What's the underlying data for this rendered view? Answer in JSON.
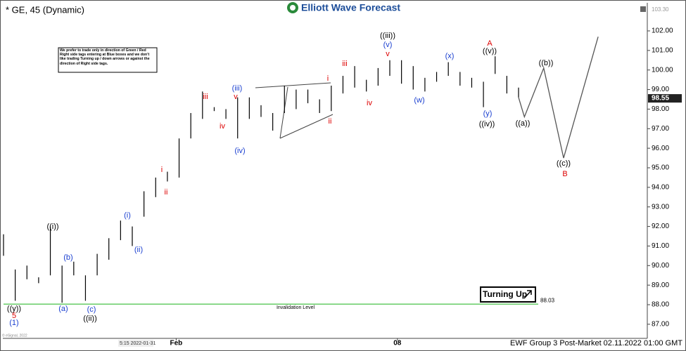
{
  "header": {
    "symbol": "* GE, 45 (Dynamic)",
    "logo": "Elliott Wave Forecast",
    "corner_value": "103.30"
  },
  "note": "We prefer to trade only in direction of Green / Red Right side tags entering at Blue boxes and we don't like trading Turning up / down arrows or against the direction of Right side tags.",
  "button": "Turning Up",
  "footer": {
    "status": "EWF Group 3 Post-Market 02.11.2022 01:00 GMT",
    "copyright": "© eSignal, 2022",
    "cursor_time": "5:15 2022-01-31"
  },
  "chart_data": {
    "type": "ohlc",
    "x": [
      0,
      2,
      4,
      6,
      8,
      10,
      12,
      14,
      16,
      18,
      20,
      22,
      24,
      26,
      28,
      30,
      32,
      34,
      36,
      38,
      40,
      42,
      44,
      46,
      48,
      50,
      52,
      54,
      56,
      58,
      60,
      62,
      64,
      66,
      68,
      70,
      72,
      74,
      76,
      78,
      80,
      82,
      84,
      86,
      88
    ],
    "high": [
      91.6,
      89.8,
      90.0,
      89.4,
      92.0,
      90.0,
      90.2,
      89.5,
      90.6,
      91.4,
      92.3,
      92.0,
      93.8,
      94.5,
      94.8,
      96.5,
      97.8,
      98.9,
      98.1,
      98.0,
      98.6,
      98.6,
      98.2,
      97.8,
      99.2,
      99.0,
      99.0,
      98.5,
      99.2,
      99.7,
      100.2,
      99.5,
      100.1,
      100.5,
      100.5,
      100.2,
      99.6,
      99.9,
      100.4,
      99.9,
      99.6,
      99.4,
      100.7,
      99.7,
      99.1
    ],
    "low": [
      90.5,
      88.2,
      89.3,
      89.1,
      89.5,
      88.1,
      89.5,
      88.2,
      89.5,
      90.3,
      91.3,
      91.0,
      92.5,
      93.5,
      94.3,
      94.5,
      96.5,
      97.5,
      97.9,
      97.5,
      96.5,
      97.5,
      97.6,
      96.9,
      97.8,
      98.0,
      98.3,
      97.8,
      97.9,
      98.8,
      99.1,
      98.9,
      99.2,
      99.7,
      99.3,
      99.0,
      98.9,
      99.4,
      99.7,
      99.2,
      99.1,
      98.1,
      99.8,
      98.8,
      98.6
    ],
    "bar_color": "#000000",
    "projection": {
      "x": [
        88,
        89,
        92.3,
        95.7,
        101.6
      ],
      "values": [
        98.6,
        97.6,
        100.1,
        95.5,
        101.7
      ],
      "color": "#555555"
    },
    "last_price": {
      "value": 98.55,
      "label": "98.55"
    },
    "invalidation": {
      "value": 88.03,
      "label": "Invalidation Level",
      "color": "#66cc66"
    },
    "xlim": [
      0,
      110
    ],
    "ylim": [
      86.35,
      103.22
    ],
    "xticks": [
      {
        "value": 29.5,
        "label": "Feb"
      },
      {
        "value": 67.3,
        "label": "08"
      }
    ],
    "yticks": [
      {
        "value": 87,
        "label": "87.00"
      },
      {
        "value": 88,
        "label": "88.00"
      },
      {
        "value": 89,
        "label": "89.00"
      },
      {
        "value": 90,
        "label": "90.00"
      },
      {
        "value": 91,
        "label": "91.00"
      },
      {
        "value": 92,
        "label": "92.00"
      },
      {
        "value": 93,
        "label": "93.00"
      },
      {
        "value": 94,
        "label": "94.00"
      },
      {
        "value": 95,
        "label": "95.00"
      },
      {
        "value": 96,
        "label": "96.00"
      },
      {
        "value": 97,
        "label": "97.00"
      },
      {
        "value": 98,
        "label": "98.00"
      },
      {
        "value": 99,
        "label": "99.00"
      },
      {
        "value": 100,
        "label": "100.00"
      },
      {
        "value": 101,
        "label": "101.00"
      },
      {
        "value": 102,
        "label": "102.00"
      }
    ],
    "annotations": [
      {
        "text": "((y))",
        "color": "#000000"
      },
      {
        "text": "5",
        "color": "#dd0000"
      },
      {
        "text": "(1)",
        "color": "#1a3fd0"
      },
      {
        "text": "((i))",
        "color": "#000000"
      },
      {
        "text": "(a)",
        "color": "#1a3fd0"
      },
      {
        "text": "(b)",
        "color": "#1a3fd0"
      },
      {
        "text": "(c)",
        "color": "#1a3fd0"
      },
      {
        "text": "((ii))",
        "color": "#000000"
      },
      {
        "text": "(i)",
        "color": "#1a3fd0"
      },
      {
        "text": "(ii)",
        "color": "#1a3fd0"
      },
      {
        "text": "i",
        "color": "#dd0000"
      },
      {
        "text": "ii",
        "color": "#dd0000"
      },
      {
        "text": "iii",
        "color": "#dd0000"
      },
      {
        "text": "iv",
        "color": "#dd0000"
      },
      {
        "text": "(iii)",
        "color": "#1a3fd0"
      },
      {
        "text": "v",
        "color": "#dd0000"
      },
      {
        "text": "(iv)",
        "color": "#1a3fd0"
      },
      {
        "text": "i",
        "color": "#dd0000"
      },
      {
        "text": "ii",
        "color": "#dd0000"
      },
      {
        "text": "iii",
        "color": "#dd0000"
      },
      {
        "text": "iv",
        "color": "#dd0000"
      },
      {
        "text": "((iii))",
        "color": "#000000"
      },
      {
        "text": "(v)",
        "color": "#1a3fd0"
      },
      {
        "text": "v",
        "color": "#dd0000"
      },
      {
        "text": "(w)",
        "color": "#1a3fd0"
      },
      {
        "text": "(x)",
        "color": "#1a3fd0"
      },
      {
        "text": "A",
        "color": "#dd0000"
      },
      {
        "text": "((v))",
        "color": "#000000"
      },
      {
        "text": "(y)",
        "color": "#1a3fd0"
      },
      {
        "text": "((iv))",
        "color": "#000000"
      },
      {
        "text": "((a))",
        "color": "#000000"
      },
      {
        "text": "((b))",
        "color": "#000000"
      },
      {
        "text": "((c))",
        "color": "#000000"
      },
      {
        "text": "B",
        "color": "#dd0000"
      }
    ]
  }
}
